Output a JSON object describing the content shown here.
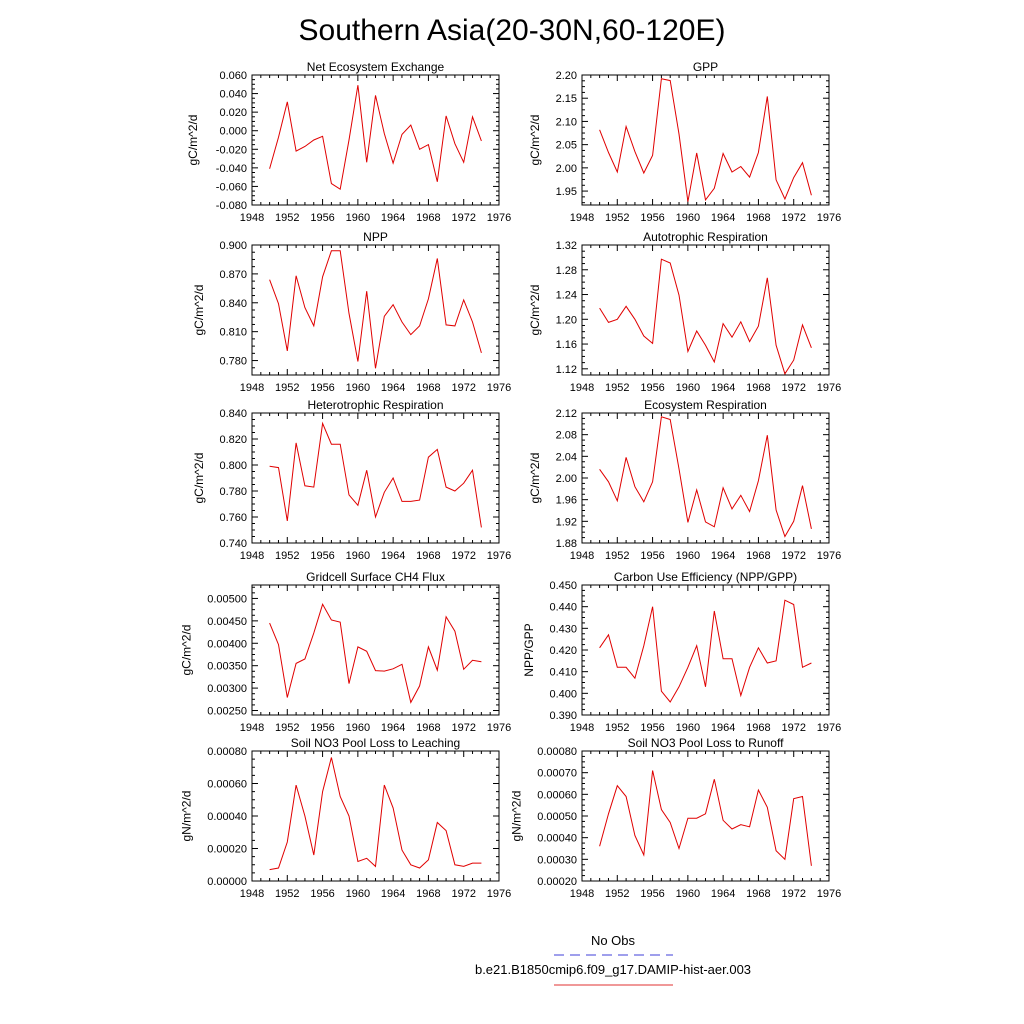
{
  "title": "Southern Asia(20-30N,60-120E)",
  "legend": {
    "entries": [
      {
        "label": "No Obs",
        "color": "#3f3fd8",
        "dash": true
      },
      {
        "label": "b.e21.B1850cmip6.f09_g17.DAMIP-hist-aer.003",
        "color": "#e23030",
        "dash": false
      }
    ]
  },
  "chart_data": [
    {
      "type": "line",
      "title": "Net Ecosystem Exchange",
      "ylabel": "gC/m^2/d",
      "xlim": [
        1948,
        1976
      ],
      "x_ticks": [
        "1948",
        "1952",
        "1956",
        "1960",
        "1964",
        "1968",
        "1972",
        "1976"
      ],
      "ylim": [
        -0.08,
        0.06
      ],
      "y_ticks": [
        "-0.080",
        "-0.060",
        "-0.040",
        "-0.020",
        "0.000",
        "0.020",
        "0.040",
        "0.060"
      ],
      "x": [
        1950,
        1951,
        1952,
        1953,
        1954,
        1955,
        1956,
        1957,
        1958,
        1959,
        1960,
        1961,
        1962,
        1963,
        1964,
        1965,
        1966,
        1967,
        1968,
        1969,
        1970,
        1971,
        1972,
        1973,
        1974
      ],
      "series": [
        {
          "color": "#e00000",
          "values": [
            -0.041,
            -0.007,
            0.031,
            -0.022,
            -0.017,
            -0.01,
            -0.006,
            -0.057,
            -0.063,
            -0.01,
            0.049,
            -0.034,
            0.038,
            -0.003,
            -0.035,
            -0.004,
            0.006,
            -0.02,
            -0.015,
            -0.055,
            0.016,
            -0.014,
            -0.034,
            0.015,
            -0.011
          ]
        }
      ]
    },
    {
      "type": "line",
      "title": "GPP",
      "ylabel": "gC/m^2/d",
      "xlim": [
        1948,
        1976
      ],
      "x_ticks": [
        "1948",
        "1952",
        "1956",
        "1960",
        "1964",
        "1968",
        "1972",
        "1976"
      ],
      "ylim": [
        1.92,
        2.2
      ],
      "y_ticks": [
        "1.95",
        "2.00",
        "2.05",
        "2.10",
        "2.15",
        "2.20"
      ],
      "x": [
        1950,
        1951,
        1952,
        1953,
        1954,
        1955,
        1956,
        1957,
        1958,
        1959,
        1960,
        1961,
        1962,
        1963,
        1964,
        1965,
        1966,
        1967,
        1968,
        1969,
        1970,
        1971,
        1972,
        1973,
        1974
      ],
      "series": [
        {
          "color": "#e00000",
          "values": [
            2.082,
            2.033,
            1.991,
            2.089,
            2.035,
            1.989,
            2.027,
            2.192,
            2.188,
            2.073,
            1.927,
            2.032,
            1.931,
            1.956,
            2.031,
            1.991,
            2.003,
            1.98,
            2.033,
            2.154,
            1.974,
            1.933,
            1.979,
            2.011,
            1.941
          ]
        }
      ]
    },
    {
      "type": "line",
      "title": "NPP",
      "ylabel": "gC/m^2/d",
      "xlim": [
        1948,
        1976
      ],
      "x_ticks": [
        "1948",
        "1952",
        "1956",
        "1960",
        "1964",
        "1968",
        "1972",
        "1976"
      ],
      "ylim": [
        0.765,
        0.9
      ],
      "y_ticks": [
        "0.780",
        "0.810",
        "0.840",
        "0.870",
        "0.900"
      ],
      "x": [
        1950,
        1951,
        1952,
        1953,
        1954,
        1955,
        1956,
        1957,
        1958,
        1959,
        1960,
        1961,
        1962,
        1963,
        1964,
        1965,
        1966,
        1967,
        1968,
        1969,
        1970,
        1971,
        1972,
        1973,
        1974
      ],
      "series": [
        {
          "color": "#e00000",
          "values": [
            0.864,
            0.839,
            0.79,
            0.868,
            0.835,
            0.816,
            0.867,
            0.894,
            0.894,
            0.829,
            0.779,
            0.852,
            0.772,
            0.826,
            0.838,
            0.82,
            0.807,
            0.816,
            0.844,
            0.886,
            0.817,
            0.816,
            0.843,
            0.82,
            0.788
          ]
        }
      ]
    },
    {
      "type": "line",
      "title": "Autotrophic Respiration",
      "ylabel": "gC/m^2/d",
      "xlim": [
        1948,
        1976
      ],
      "x_ticks": [
        "1948",
        "1952",
        "1956",
        "1960",
        "1964",
        "1968",
        "1972",
        "1976"
      ],
      "ylim": [
        1.11,
        1.32
      ],
      "y_ticks": [
        "1.12",
        "1.16",
        "1.20",
        "1.24",
        "1.28",
        "1.32"
      ],
      "x": [
        1950,
        1951,
        1952,
        1953,
        1954,
        1955,
        1956,
        1957,
        1958,
        1959,
        1960,
        1961,
        1962,
        1963,
        1964,
        1965,
        1966,
        1967,
        1968,
        1969,
        1970,
        1971,
        1972,
        1973,
        1974
      ],
      "series": [
        {
          "color": "#e00000",
          "values": [
            1.218,
            1.195,
            1.2,
            1.221,
            1.2,
            1.173,
            1.161,
            1.297,
            1.291,
            1.239,
            1.148,
            1.181,
            1.158,
            1.131,
            1.193,
            1.171,
            1.196,
            1.164,
            1.189,
            1.267,
            1.158,
            1.112,
            1.134,
            1.191,
            1.154
          ]
        }
      ]
    },
    {
      "type": "line",
      "title": "Heterotrophic Respiration",
      "ylabel": "gC/m^2/d",
      "xlim": [
        1948,
        1976
      ],
      "x_ticks": [
        "1948",
        "1952",
        "1956",
        "1960",
        "1964",
        "1968",
        "1972",
        "1976"
      ],
      "ylim": [
        0.74,
        0.84
      ],
      "y_ticks": [
        "0.740",
        "0.760",
        "0.780",
        "0.800",
        "0.820",
        "0.840"
      ],
      "x": [
        1950,
        1951,
        1952,
        1953,
        1954,
        1955,
        1956,
        1957,
        1958,
        1959,
        1960,
        1961,
        1962,
        1963,
        1964,
        1965,
        1966,
        1967,
        1968,
        1969,
        1970,
        1971,
        1972,
        1973,
        1974
      ],
      "series": [
        {
          "color": "#e00000",
          "values": [
            0.799,
            0.798,
            0.757,
            0.817,
            0.784,
            0.783,
            0.832,
            0.816,
            0.816,
            0.777,
            0.769,
            0.796,
            0.76,
            0.779,
            0.79,
            0.772,
            0.772,
            0.773,
            0.806,
            0.812,
            0.783,
            0.78,
            0.786,
            0.796,
            0.752
          ]
        }
      ]
    },
    {
      "type": "line",
      "title": "Ecosystem Respiration",
      "ylabel": "gC/m^2/d",
      "xlim": [
        1948,
        1976
      ],
      "x_ticks": [
        "1948",
        "1952",
        "1956",
        "1960",
        "1964",
        "1968",
        "1972",
        "1976"
      ],
      "ylim": [
        1.88,
        2.12
      ],
      "y_ticks": [
        "1.88",
        "1.92",
        "1.96",
        "2.00",
        "2.04",
        "2.08",
        "2.12"
      ],
      "x": [
        1950,
        1951,
        1952,
        1953,
        1954,
        1955,
        1956,
        1957,
        1958,
        1959,
        1960,
        1961,
        1962,
        1963,
        1964,
        1965,
        1966,
        1967,
        1968,
        1969,
        1970,
        1971,
        1972,
        1973,
        1974
      ],
      "series": [
        {
          "color": "#e00000",
          "values": [
            2.016,
            1.993,
            1.958,
            2.038,
            1.984,
            1.956,
            1.993,
            2.113,
            2.108,
            2.017,
            1.918,
            1.978,
            1.919,
            1.91,
            1.982,
            1.943,
            1.968,
            1.938,
            1.995,
            2.079,
            1.941,
            1.892,
            1.92,
            1.986,
            1.906
          ]
        }
      ]
    },
    {
      "type": "line",
      "title": "Gridcell Surface CH4 Flux",
      "ylabel": "gC/m^2/d",
      "xlim": [
        1948,
        1976
      ],
      "x_ticks": [
        "1948",
        "1952",
        "1956",
        "1960",
        "1964",
        "1968",
        "1972",
        "1976"
      ],
      "ylim": [
        0.0024,
        0.0053
      ],
      "y_ticks": [
        "0.00250",
        "0.00300",
        "0.00350",
        "0.00400",
        "0.00450",
        "0.00500"
      ],
      "x": [
        1950,
        1951,
        1952,
        1953,
        1954,
        1955,
        1956,
        1957,
        1958,
        1959,
        1960,
        1961,
        1962,
        1963,
        1964,
        1965,
        1966,
        1967,
        1968,
        1969,
        1970,
        1971,
        1972,
        1973,
        1974
      ],
      "series": [
        {
          "color": "#e00000",
          "values": [
            0.00445,
            0.00397,
            0.00279,
            0.00355,
            0.00365,
            0.00423,
            0.00487,
            0.00452,
            0.00447,
            0.0031,
            0.00392,
            0.00382,
            0.00339,
            0.00338,
            0.00343,
            0.00353,
            0.00268,
            0.00305,
            0.00392,
            0.0034,
            0.00459,
            0.00427,
            0.00342,
            0.00362,
            0.00359
          ]
        }
      ]
    },
    {
      "type": "line",
      "title": "Carbon Use Efficiency (NPP/GPP)",
      "ylabel": "NPP/GPP",
      "xlim": [
        1948,
        1976
      ],
      "x_ticks": [
        "1948",
        "1952",
        "1956",
        "1960",
        "1964",
        "1968",
        "1972",
        "1976"
      ],
      "ylim": [
        0.39,
        0.45
      ],
      "y_ticks": [
        "0.390",
        "0.400",
        "0.410",
        "0.420",
        "0.430",
        "0.440",
        "0.450"
      ],
      "x": [
        1950,
        1951,
        1952,
        1953,
        1954,
        1955,
        1956,
        1957,
        1958,
        1959,
        1960,
        1961,
        1962,
        1963,
        1964,
        1965,
        1966,
        1967,
        1968,
        1969,
        1970,
        1971,
        1972,
        1973,
        1974
      ],
      "series": [
        {
          "color": "#e00000",
          "values": [
            0.421,
            0.427,
            0.412,
            0.412,
            0.407,
            0.422,
            0.44,
            0.401,
            0.396,
            0.403,
            0.412,
            0.422,
            0.403,
            0.438,
            0.416,
            0.416,
            0.399,
            0.412,
            0.421,
            0.414,
            0.415,
            0.443,
            0.441,
            0.412,
            0.414
          ]
        }
      ]
    },
    {
      "type": "line",
      "title": "Soil NO3 Pool Loss to Leaching",
      "ylabel": "gN/m^2/d",
      "xlim": [
        1948,
        1976
      ],
      "x_ticks": [
        "1948",
        "1952",
        "1956",
        "1960",
        "1964",
        "1968",
        "1972",
        "1976"
      ],
      "ylim": [
        0.0,
        0.0008
      ],
      "y_ticks": [
        "0.00000",
        "0.00020",
        "0.00040",
        "0.00060",
        "0.00080"
      ],
      "x": [
        1950,
        1951,
        1952,
        1953,
        1954,
        1955,
        1956,
        1957,
        1958,
        1959,
        1960,
        1961,
        1962,
        1963,
        1964,
        1965,
        1966,
        1967,
        1968,
        1969,
        1970,
        1971,
        1972,
        1973,
        1974
      ],
      "series": [
        {
          "color": "#e00000",
          "values": [
            7e-05,
            8e-05,
            0.00024,
            0.00059,
            0.0004,
            0.00016,
            0.00055,
            0.00076,
            0.00052,
            0.0004,
            0.00012,
            0.00014,
            9e-05,
            0.00059,
            0.00045,
            0.00019,
            0.0001,
            8e-05,
            0.00013,
            0.00036,
            0.00031,
            0.0001,
            9e-05,
            0.00011,
            0.00011
          ]
        }
      ]
    },
    {
      "type": "line",
      "title": "Soil NO3 Pool Loss to Runoff",
      "ylabel": "gN/m^2/d",
      "xlim": [
        1948,
        1976
      ],
      "x_ticks": [
        "1948",
        "1952",
        "1956",
        "1960",
        "1964",
        "1968",
        "1972",
        "1976"
      ],
      "ylim": [
        0.0002,
        0.0008
      ],
      "y_ticks": [
        "0.00020",
        "0.00030",
        "0.00040",
        "0.00050",
        "0.00060",
        "0.00070",
        "0.00080"
      ],
      "x": [
        1950,
        1951,
        1952,
        1953,
        1954,
        1955,
        1956,
        1957,
        1958,
        1959,
        1960,
        1961,
        1962,
        1963,
        1964,
        1965,
        1966,
        1967,
        1968,
        1969,
        1970,
        1971,
        1972,
        1973,
        1974
      ],
      "series": [
        {
          "color": "#e00000",
          "values": [
            0.00036,
            0.00051,
            0.00064,
            0.00059,
            0.00041,
            0.00032,
            0.00071,
            0.00053,
            0.00047,
            0.00035,
            0.00049,
            0.00049,
            0.00051,
            0.00067,
            0.00048,
            0.00044,
            0.00046,
            0.00045,
            0.00062,
            0.00054,
            0.00034,
            0.0003,
            0.00058,
            0.00059,
            0.00027
          ]
        }
      ]
    }
  ]
}
